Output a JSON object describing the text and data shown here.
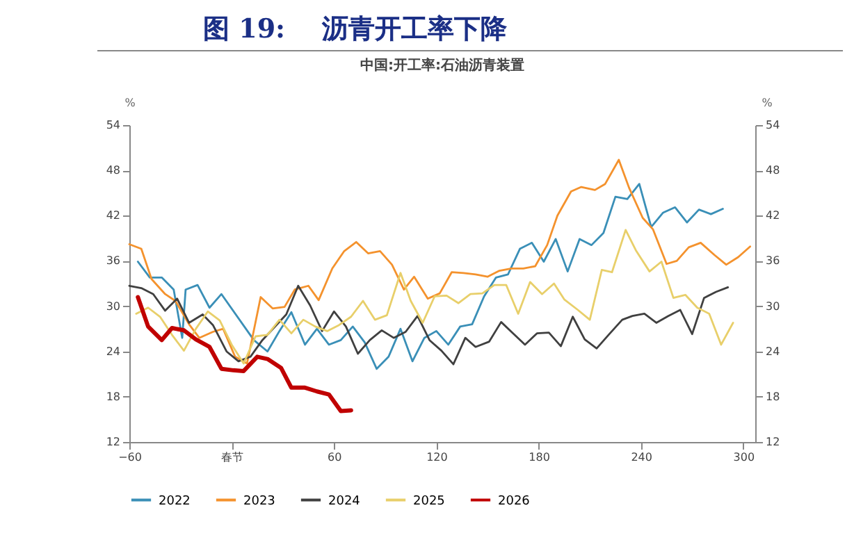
{
  "chart_data": {
    "type": "line",
    "title": "图 19:    沥青开工率下降",
    "subtitle": "中国:开工率:石油沥青装置",
    "ylabel": "%",
    "y2label": "%",
    "xlim": [
      -60,
      307
    ],
    "xticks": [
      -60,
      {
        "value": 0,
        "label": "春节"
      },
      60,
      120,
      180,
      240,
      300
    ],
    "ylim": [
      12,
      54
    ],
    "yticks": [
      12,
      18,
      24,
      30,
      36,
      42,
      48,
      54
    ],
    "y2lim": [
      12,
      54
    ],
    "y2ticks": [
      12,
      18,
      24,
      30,
      36,
      42,
      48,
      54
    ],
    "grid": false,
    "legend": "bottom",
    "line_style": "solid",
    "series": [
      {
        "name": "2022",
        "color": "#3a8fb7",
        "x": [
          -55,
          -48,
          -41,
          -34,
          -29,
          -27,
          -20,
          -13,
          -6,
          13,
          21,
          28,
          35,
          43,
          50,
          57,
          64,
          71,
          78,
          85,
          92,
          99,
          106,
          113,
          120,
          127,
          134,
          141,
          148,
          155,
          162,
          169,
          176,
          183,
          190,
          197,
          204,
          211,
          218,
          225,
          232,
          239,
          246,
          253,
          260,
          267,
          274,
          281,
          288
        ],
        "values": [
          35.9,
          33.8,
          33.8,
          32.2,
          25.8,
          32.2,
          32.8,
          29.8,
          31.6,
          25.5,
          24.0,
          26.7,
          29.2,
          24.9,
          27.0,
          24.9,
          25.5,
          27.3,
          25.2,
          21.7,
          23.3,
          27.0,
          22.7,
          25.8,
          26.7,
          24.9,
          27.3,
          27.6,
          31.3,
          33.8,
          34.2,
          37.6,
          38.4,
          35.9,
          38.9,
          34.6,
          38.9,
          38.1,
          39.7,
          44.5,
          44.2,
          46.2,
          40.5,
          42.4,
          43.1,
          41.1,
          42.8,
          42.2,
          42.9
        ]
      },
      {
        "name": "2023",
        "color": "#f4922d",
        "x": [
          -60,
          -53,
          -47,
          -39,
          -33,
          -25,
          -19,
          -11,
          -5,
          2,
          9,
          17,
          24,
          31,
          37,
          45,
          51,
          59,
          66,
          73,
          80,
          87,
          94,
          101,
          107,
          115,
          122,
          129,
          136,
          143,
          150,
          157,
          164,
          171,
          178,
          185,
          191,
          199,
          205,
          213,
          219,
          227,
          233,
          241,
          247,
          255,
          261,
          268,
          275,
          283,
          290,
          297,
          304
        ],
        "values": [
          38.2,
          37.6,
          33.6,
          31.6,
          30.7,
          27.6,
          25.8,
          26.6,
          27.0,
          23.3,
          22.4,
          31.2,
          29.7,
          29.9,
          32.2,
          32.7,
          30.8,
          35.0,
          37.3,
          38.5,
          37.0,
          37.3,
          35.5,
          32.2,
          33.9,
          31.0,
          31.7,
          34.5,
          34.4,
          34.2,
          33.9,
          34.7,
          35.0,
          35.0,
          35.3,
          38.1,
          42.0,
          45.2,
          45.8,
          45.4,
          46.2,
          49.4,
          45.7,
          41.7,
          40.2,
          35.6,
          36.0,
          37.8,
          38.4,
          36.8,
          35.5,
          36.5,
          37.9
        ]
      },
      {
        "name": "2024",
        "color": "#404040",
        "x": [
          -60,
          -53,
          -46,
          -39,
          -32,
          -25,
          -17,
          -11,
          -3,
          4,
          11,
          18,
          25,
          32,
          39,
          46,
          53,
          60,
          67,
          74,
          81,
          88,
          95,
          102,
          109,
          116,
          123,
          130,
          137,
          143,
          151,
          158,
          165,
          172,
          179,
          186,
          193,
          200,
          207,
          214,
          221,
          229,
          235,
          242,
          249,
          256,
          263,
          270,
          277,
          284,
          291
        ],
        "values": [
          32.7,
          32.4,
          31.6,
          29.4,
          31.0,
          27.8,
          28.9,
          27.5,
          24.0,
          22.7,
          23.3,
          25.5,
          27.2,
          28.9,
          32.7,
          30.1,
          26.7,
          29.3,
          27.3,
          23.7,
          25.5,
          26.8,
          25.8,
          26.6,
          28.7,
          25.5,
          24.1,
          22.3,
          25.8,
          24.6,
          25.3,
          27.9,
          26.4,
          24.9,
          26.4,
          26.5,
          24.7,
          28.6,
          25.6,
          24.4,
          26.2,
          28.2,
          28.7,
          29.0,
          27.8,
          28.7,
          29.5,
          26.3,
          31.1,
          31.9,
          32.5
        ]
      },
      {
        "name": "2025",
        "color": "#e8cf6a",
        "x": [
          -56,
          -49,
          -42,
          -35,
          -28,
          -21,
          -14,
          -7,
          0,
          7,
          14,
          21,
          28,
          35,
          42,
          49,
          56,
          63,
          70,
          77,
          84,
          91,
          99,
          105,
          112,
          119,
          126,
          133,
          140,
          147,
          154,
          161,
          168,
          175,
          182,
          189,
          195,
          203,
          210,
          217,
          223,
          231,
          237,
          245,
          252,
          259,
          266,
          273,
          280,
          287,
          294
        ],
        "values": [
          29.0,
          29.8,
          28.6,
          26.2,
          24.1,
          27.0,
          29.3,
          28.1,
          24.9,
          22.4,
          26.0,
          26.2,
          28.2,
          26.4,
          28.2,
          27.3,
          26.7,
          27.5,
          28.6,
          30.7,
          28.2,
          28.8,
          34.4,
          30.7,
          27.8,
          31.3,
          31.4,
          30.4,
          31.6,
          31.7,
          32.8,
          32.8,
          29.0,
          33.2,
          31.6,
          33.0,
          30.9,
          29.5,
          28.2,
          34.8,
          34.5,
          40.1,
          37.4,
          34.6,
          35.9,
          31.1,
          31.5,
          29.8,
          29.0,
          24.9,
          27.8
        ]
      },
      {
        "name": "2026",
        "color": "#c00000",
        "x": [
          -55,
          -49,
          -41,
          -35,
          -28,
          -21,
          -13,
          -6,
          1,
          7,
          15,
          21,
          29,
          35,
          43,
          50,
          57,
          64,
          70
        ],
        "values": [
          31.2,
          27.3,
          25.5,
          27.1,
          26.8,
          25.6,
          24.6,
          21.7,
          21.5,
          21.4,
          23.3,
          23.0,
          21.8,
          19.2,
          19.2,
          18.7,
          18.3,
          16.1,
          16.2
        ]
      }
    ]
  }
}
